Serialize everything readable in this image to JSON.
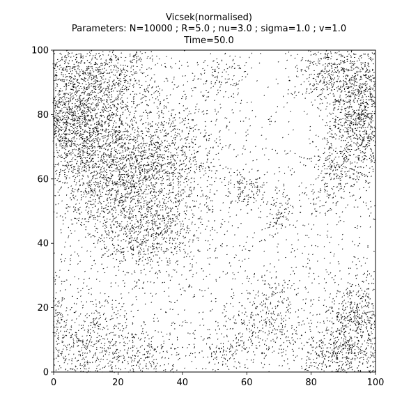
{
  "chart_data": {
    "type": "scatter",
    "title_lines": [
      "Vicsek(normalised)",
      "Parameters: N=10000 ; R=5.0 ; nu=3.0 ; sigma=1.0 ; v=1.0",
      "Time=50.0"
    ],
    "xlabel": "",
    "ylabel": "",
    "xlim": [
      0,
      100
    ],
    "ylim": [
      0,
      100
    ],
    "x_ticks": [
      0,
      20,
      40,
      60,
      80,
      100
    ],
    "y_ticks": [
      0,
      20,
      40,
      60,
      80,
      100
    ],
    "grid": false,
    "legend": "none",
    "marker": "short black arrow (quiver) per particle",
    "mark_color": "#000000",
    "points_approximate": true,
    "clusters": [
      {
        "cx": 8,
        "cy": 78,
        "sx": 9,
        "sy": 10,
        "count": 1700,
        "heading_deg": 210
      },
      {
        "cx": 22,
        "cy": 58,
        "sx": 10,
        "sy": 12,
        "count": 1500,
        "heading_deg": 215
      },
      {
        "cx": 35,
        "cy": 68,
        "sx": 9,
        "sy": 10,
        "count": 700,
        "heading_deg": 220
      },
      {
        "cx": 14,
        "cy": 93,
        "sx": 10,
        "sy": 5,
        "count": 500,
        "heading_deg": 205
      },
      {
        "cx": 30,
        "cy": 43,
        "sx": 8,
        "sy": 5,
        "count": 350,
        "heading_deg": 225
      },
      {
        "cx": 94,
        "cy": 80,
        "sx": 5,
        "sy": 10,
        "count": 650,
        "heading_deg": 200
      },
      {
        "cx": 86,
        "cy": 92,
        "sx": 6,
        "sy": 4,
        "count": 300,
        "heading_deg": 210
      },
      {
        "cx": 87,
        "cy": 62,
        "sx": 4,
        "sy": 6,
        "count": 180,
        "heading_deg": 215
      },
      {
        "cx": 94,
        "cy": 16,
        "sx": 6,
        "sy": 8,
        "count": 650,
        "heading_deg": 240
      },
      {
        "cx": 86,
        "cy": 6,
        "sx": 6,
        "sy": 4,
        "count": 250,
        "heading_deg": 235
      },
      {
        "cx": 66,
        "cy": 16,
        "sx": 6,
        "sy": 7,
        "count": 350,
        "heading_deg": 250
      },
      {
        "cx": 53,
        "cy": 7,
        "sx": 4,
        "sy": 4,
        "count": 120,
        "heading_deg": 250
      },
      {
        "cx": 12,
        "cy": 10,
        "sx": 9,
        "sy": 7,
        "count": 500,
        "heading_deg": 225
      },
      {
        "cx": 30,
        "cy": 5,
        "sx": 6,
        "sy": 4,
        "count": 180,
        "heading_deg": 230
      },
      {
        "cx": 60,
        "cy": 56,
        "sx": 3,
        "sy": 3,
        "count": 100,
        "heading_deg": 215
      },
      {
        "cx": 70,
        "cy": 49,
        "sx": 3,
        "sy": 3,
        "count": 80,
        "heading_deg": 220
      },
      {
        "cx": 52,
        "cy": 92,
        "sx": 4,
        "sy": 3,
        "count": 90,
        "heading_deg": 210
      },
      {
        "cx": 50,
        "cy": 50,
        "sx": 29,
        "sy": 29,
        "count": 1300,
        "heading_deg": 220
      }
    ]
  }
}
